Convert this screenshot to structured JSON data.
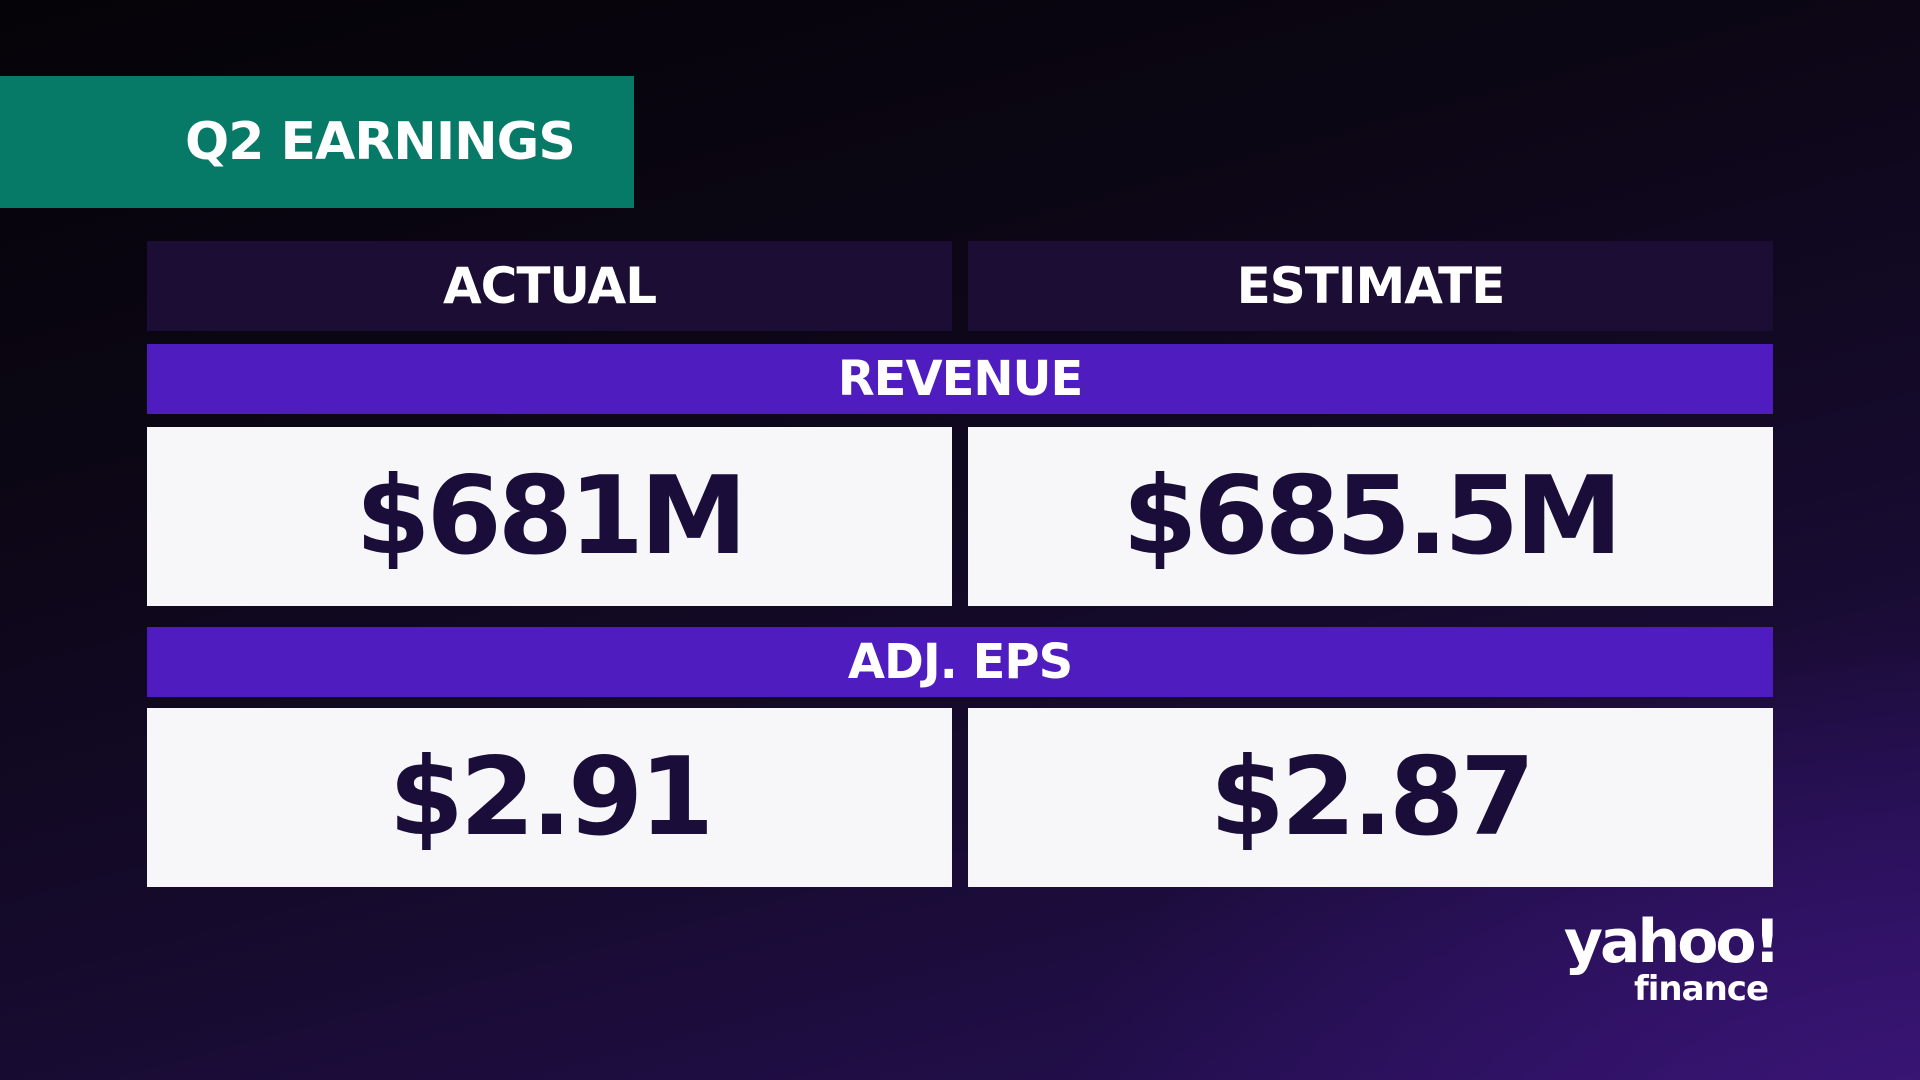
{
  "title": "Q2 EARNINGS",
  "columns": {
    "actual": "ACTUAL",
    "estimate": "ESTIMATE"
  },
  "sections": [
    {
      "label": "REVENUE",
      "actual": "$681M",
      "estimate": "$685.5M"
    },
    {
      "label": "ADJ. EPS",
      "actual": "$2.91",
      "estimate": "$2.87"
    }
  ],
  "logo": {
    "brand": "yahoo!",
    "sub": "finance"
  },
  "colors": {
    "title_bg": "#067a66",
    "section_bar": "#4f1cc0",
    "header_bg": "#1b0d33",
    "value_bg": "#f7f7f9",
    "value_text": "#1a0d3a"
  }
}
